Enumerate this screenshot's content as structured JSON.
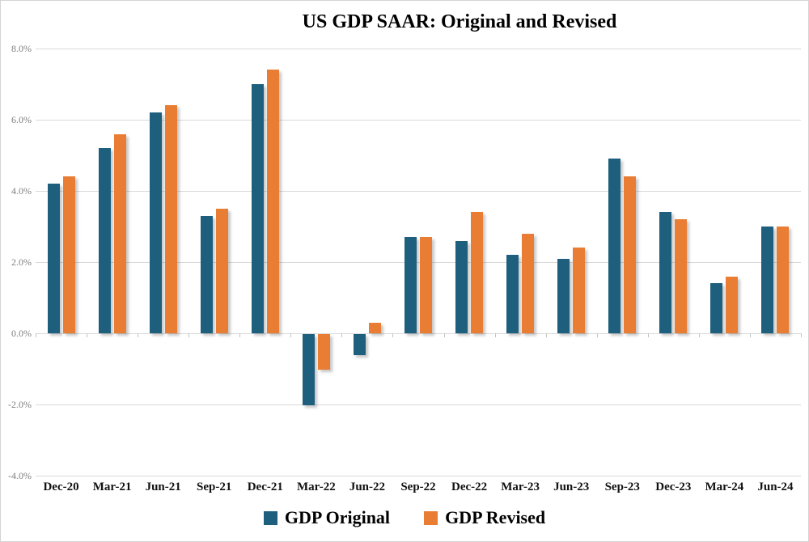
{
  "page": {
    "title": "US GDP SAAR: Original and Revised"
  },
  "chart_data": {
    "type": "bar",
    "title": "US GDP SAAR: Original and Revised",
    "xlabel": "",
    "ylabel": "",
    "categories": [
      "Dec-20",
      "Mar-21",
      "Jun-21",
      "Sep-21",
      "Dec-21",
      "Mar-22",
      "Jun-22",
      "Sep-22",
      "Dec-22",
      "Mar-23",
      "Jun-23",
      "Sep-23",
      "Dec-23",
      "Mar-24",
      "Jun-24"
    ],
    "series": [
      {
        "name": "GDP Original",
        "color": "#1e5f7e",
        "values": [
          4.2,
          5.2,
          6.2,
          3.3,
          7.0,
          -2.0,
          -0.6,
          2.7,
          2.6,
          2.2,
          2.1,
          4.9,
          3.4,
          1.4,
          3.0
        ]
      },
      {
        "name": "GDP Revised",
        "color": "#e97d33",
        "values": [
          4.4,
          5.6,
          6.4,
          3.5,
          7.4,
          -1.0,
          0.3,
          2.7,
          3.4,
          2.8,
          2.4,
          4.4,
          3.2,
          1.6,
          3.0
        ]
      }
    ],
    "y_axis": {
      "min": -4.0,
      "max": 8.0,
      "step": 2.0,
      "tick_labels": [
        "8.0%",
        "6.0%",
        "4.0%",
        "2.0%",
        "0.0%",
        "-2.0%",
        "-4.0%"
      ],
      "unit": "percent"
    },
    "grid": true,
    "gridline_color": "#d9d9d9",
    "legend_position": "bottom",
    "background": "#ffffff"
  }
}
